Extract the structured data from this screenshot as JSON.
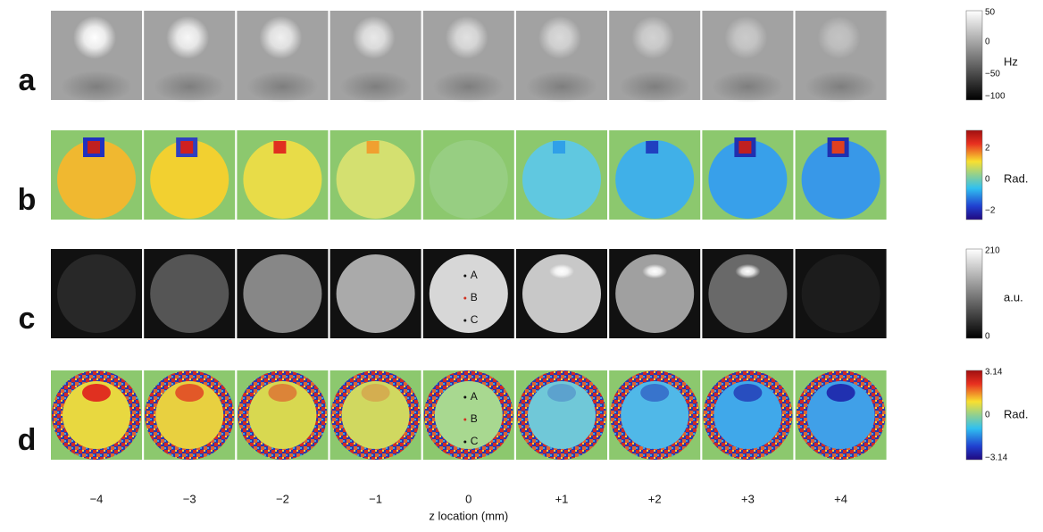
{
  "rows": [
    {
      "label": "a",
      "colorbar_ticks": [
        "50",
        "0",
        "−50",
        "−100"
      ],
      "unit": "Hz"
    },
    {
      "label": "b",
      "colorbar_ticks": [
        "2",
        "0",
        "−2"
      ],
      "unit": "Rad."
    },
    {
      "label": "c",
      "colorbar_ticks": [
        "210",
        "0"
      ],
      "unit": "a.u.",
      "markers": [
        "A",
        "B",
        "C"
      ]
    },
    {
      "label": "d",
      "colorbar_ticks": [
        "3.14",
        "0",
        "−3.14"
      ],
      "unit": "Rad.",
      "markers": [
        "A",
        "B",
        "C"
      ]
    }
  ],
  "columns": [
    "−4",
    "−3",
    "−2",
    "−1",
    "0",
    "+1",
    "+2",
    "+3",
    "+4"
  ],
  "x_axis_label": "z location (mm)"
}
